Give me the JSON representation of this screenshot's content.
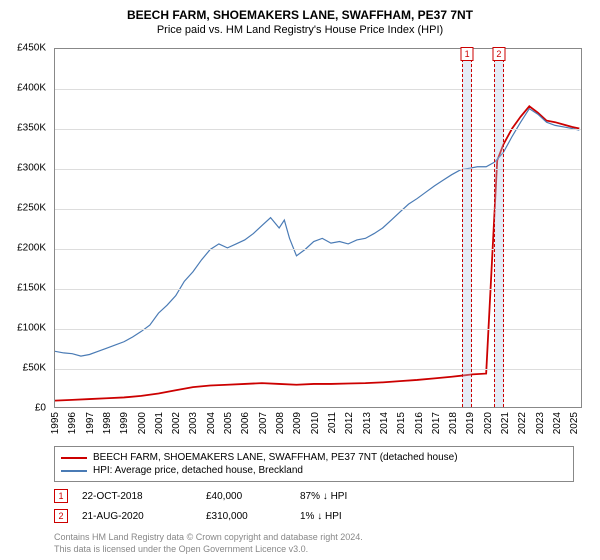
{
  "title": "BEECH FARM, SHOEMAKERS LANE, SWAFFHAM, PE37 7NT",
  "subtitle": "Price paid vs. HM Land Registry's House Price Index (HPI)",
  "chart": {
    "type": "line",
    "background_color": "#ffffff",
    "grid_color": "#dddddd",
    "border_color": "#888888",
    "x": {
      "min": 1995,
      "max": 2025.5,
      "ticks": [
        1995,
        1996,
        1997,
        1998,
        1999,
        2000,
        2001,
        2002,
        2003,
        2004,
        2005,
        2006,
        2007,
        2008,
        2009,
        2010,
        2011,
        2012,
        2013,
        2014,
        2015,
        2016,
        2017,
        2018,
        2019,
        2020,
        2021,
        2022,
        2023,
        2024,
        2025
      ],
      "label_fontsize": 10,
      "rotation": -90
    },
    "y": {
      "min": 0,
      "max": 450000,
      "ticks": [
        0,
        50000,
        100000,
        150000,
        200000,
        250000,
        300000,
        350000,
        400000,
        450000
      ],
      "tick_labels": [
        "£0",
        "£50K",
        "£100K",
        "£150K",
        "£200K",
        "£250K",
        "£300K",
        "£350K",
        "£400K",
        "£450K"
      ],
      "label_fontsize": 10
    },
    "markers": [
      {
        "idx": "1",
        "x": 2018.81,
        "width_years": 0.6
      },
      {
        "idx": "2",
        "x": 2020.64,
        "width_years": 0.6
      }
    ],
    "series": [
      {
        "name": "property",
        "label": "BEECH FARM, SHOEMAKERS LANE, SWAFFHAM, PE37 7NT (detached house)",
        "color": "#cc0000",
        "line_width": 1.8,
        "points": [
          [
            1995,
            8000
          ],
          [
            1996,
            9000
          ],
          [
            1997,
            10000
          ],
          [
            1998,
            11000
          ],
          [
            1999,
            12000
          ],
          [
            2000,
            14000
          ],
          [
            2001,
            17000
          ],
          [
            2002,
            21000
          ],
          [
            2003,
            25000
          ],
          [
            2004,
            27000
          ],
          [
            2005,
            28000
          ],
          [
            2006,
            29000
          ],
          [
            2007,
            30000
          ],
          [
            2008,
            29000
          ],
          [
            2009,
            28000
          ],
          [
            2010,
            29000
          ],
          [
            2011,
            29000
          ],
          [
            2012,
            29500
          ],
          [
            2013,
            30000
          ],
          [
            2014,
            31000
          ],
          [
            2015,
            32500
          ],
          [
            2016,
            34000
          ],
          [
            2017,
            36000
          ],
          [
            2018,
            38000
          ],
          [
            2018.81,
            40000
          ],
          [
            2019.2,
            41000
          ],
          [
            2020,
            42000
          ],
          [
            2020.64,
            310000
          ],
          [
            2021,
            330000
          ],
          [
            2021.5,
            350000
          ],
          [
            2022,
            365000
          ],
          [
            2022.5,
            378000
          ],
          [
            2023,
            370000
          ],
          [
            2023.5,
            360000
          ],
          [
            2024,
            358000
          ],
          [
            2024.5,
            355000
          ],
          [
            2025,
            352000
          ],
          [
            2025.4,
            350000
          ]
        ]
      },
      {
        "name": "hpi",
        "label": "HPI: Average price, detached house, Breckland",
        "color": "#4a7bb5",
        "line_width": 1.2,
        "points": [
          [
            1995,
            70000
          ],
          [
            1995.5,
            68000
          ],
          [
            1996,
            67000
          ],
          [
            1996.5,
            64000
          ],
          [
            1997,
            66000
          ],
          [
            1997.5,
            70000
          ],
          [
            1998,
            74000
          ],
          [
            1998.5,
            78000
          ],
          [
            1999,
            82000
          ],
          [
            1999.5,
            88000
          ],
          [
            2000,
            95000
          ],
          [
            2000.5,
            103000
          ],
          [
            2001,
            118000
          ],
          [
            2001.5,
            128000
          ],
          [
            2002,
            140000
          ],
          [
            2002.5,
            158000
          ],
          [
            2003,
            170000
          ],
          [
            2003.5,
            185000
          ],
          [
            2004,
            198000
          ],
          [
            2004.5,
            205000
          ],
          [
            2005,
            200000
          ],
          [
            2005.5,
            205000
          ],
          [
            2006,
            210000
          ],
          [
            2006.5,
            218000
          ],
          [
            2007,
            228000
          ],
          [
            2007.5,
            238000
          ],
          [
            2008,
            225000
          ],
          [
            2008.3,
            235000
          ],
          [
            2008.6,
            212000
          ],
          [
            2009,
            190000
          ],
          [
            2009.5,
            198000
          ],
          [
            2010,
            208000
          ],
          [
            2010.5,
            212000
          ],
          [
            2011,
            206000
          ],
          [
            2011.5,
            208000
          ],
          [
            2012,
            205000
          ],
          [
            2012.5,
            210000
          ],
          [
            2013,
            212000
          ],
          [
            2013.5,
            218000
          ],
          [
            2014,
            225000
          ],
          [
            2014.5,
            235000
          ],
          [
            2015,
            245000
          ],
          [
            2015.5,
            255000
          ],
          [
            2016,
            262000
          ],
          [
            2016.5,
            270000
          ],
          [
            2017,
            278000
          ],
          [
            2017.5,
            285000
          ],
          [
            2018,
            292000
          ],
          [
            2018.5,
            298000
          ],
          [
            2019,
            300000
          ],
          [
            2019.5,
            302000
          ],
          [
            2020,
            302000
          ],
          [
            2020.5,
            308000
          ],
          [
            2021,
            320000
          ],
          [
            2021.5,
            340000
          ],
          [
            2022,
            358000
          ],
          [
            2022.5,
            375000
          ],
          [
            2023,
            368000
          ],
          [
            2023.5,
            358000
          ],
          [
            2024,
            354000
          ],
          [
            2024.5,
            352000
          ],
          [
            2025,
            350000
          ],
          [
            2025.4,
            348000
          ]
        ]
      }
    ]
  },
  "legend": {
    "rows": [
      {
        "color": "#cc0000",
        "label": "BEECH FARM, SHOEMAKERS LANE, SWAFFHAM, PE37 7NT (detached house)"
      },
      {
        "color": "#4a7bb5",
        "label": "HPI: Average price, detached house, Breckland"
      }
    ]
  },
  "transactions": [
    {
      "idx": "1",
      "date": "22-OCT-2018",
      "price": "£40,000",
      "pct": "87% ↓ HPI"
    },
    {
      "idx": "2",
      "date": "21-AUG-2020",
      "price": "£310,000",
      "pct": "1% ↓ HPI"
    }
  ],
  "footer": {
    "line1": "Contains HM Land Registry data © Crown copyright and database right 2024.",
    "line2": "This data is licensed under the Open Government Licence v3.0."
  }
}
